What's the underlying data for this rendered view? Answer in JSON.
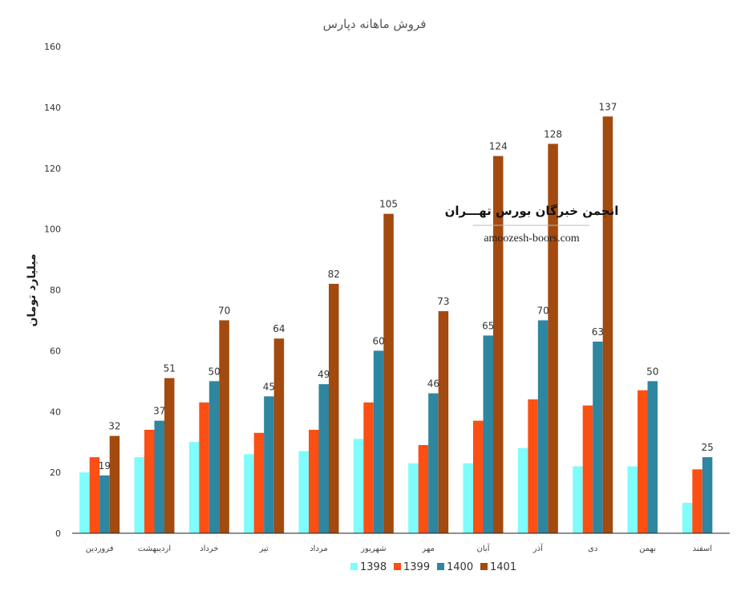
{
  "chart_data": {
    "type": "bar",
    "title": "فروش ماهانه دپارس",
    "ylabel": "میلیارد تومان",
    "xlabel": "",
    "ylim": [
      0,
      160
    ],
    "yticks": [
      0,
      20,
      40,
      60,
      80,
      100,
      120,
      140,
      160
    ],
    "grid": false,
    "legend_position": "bottom",
    "categories": [
      "فروردین",
      "اردیبهشت",
      "خرداد",
      "تیر",
      "مرداد",
      "شهریور",
      "مهر",
      "آبان",
      "آذر",
      "دی",
      "بهمن",
      "اسفند"
    ],
    "series": [
      {
        "name": "1398",
        "color": "#7ffcfc",
        "values": [
          20,
          25,
          30,
          26,
          27,
          31,
          23,
          23,
          28,
          22,
          22,
          10
        ],
        "labeled": false
      },
      {
        "name": "1399",
        "color": "#fc4f14",
        "values": [
          25,
          34,
          43,
          33,
          34,
          43,
          29,
          37,
          44,
          42,
          47,
          21
        ],
        "labeled": false
      },
      {
        "name": "1400",
        "color": "#2e86a0",
        "values": [
          19,
          37,
          50,
          45,
          49,
          60,
          46,
          65,
          70,
          63,
          50,
          25
        ],
        "labeled": true
      },
      {
        "name": "1401",
        "color": "#a24a0f",
        "values": [
          32,
          51,
          70,
          64,
          82,
          105,
          73,
          124,
          128,
          137,
          null,
          null
        ],
        "labeled": true
      }
    ]
  },
  "watermark": {
    "line1": "انجمن خبرگان بورس تهـــران",
    "line2": "amoozesh-boors.com"
  }
}
